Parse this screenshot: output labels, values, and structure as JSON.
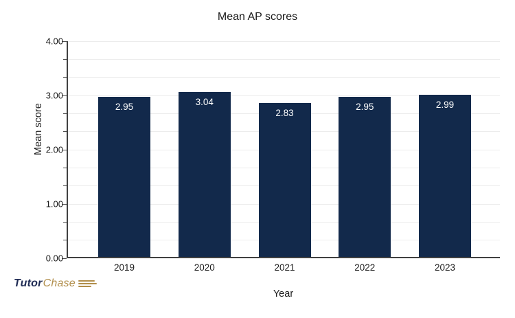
{
  "chart_data": {
    "type": "bar",
    "title": "Mean AP scores",
    "xlabel": "Year",
    "ylabel": "Mean score",
    "categories": [
      "2019",
      "2020",
      "2021",
      "2022",
      "2023"
    ],
    "values": [
      2.95,
      3.04,
      2.83,
      2.95,
      2.99
    ],
    "value_labels": [
      "2.95",
      "3.04",
      "2.83",
      "2.95",
      "2.99"
    ],
    "ylim": [
      0,
      4
    ],
    "y_major_ticks": [
      4,
      3,
      2,
      1,
      0
    ],
    "y_major_tick_labels": [
      "4.00",
      "3.00",
      "2.00",
      "1.00",
      "0.00"
    ],
    "y_minor_divisions_per_unit": 3,
    "grid": "horizontal lines at every minor tick",
    "legend": "none"
  },
  "branding": {
    "logo_part1": "Tutor",
    "logo_part2": "Chase"
  },
  "colors": {
    "bar": "#12294B",
    "bar_label": "#FFFFFF",
    "grid": "#ECECEC",
    "axis": "#404040",
    "tick": "#4D4D4D",
    "text": "#1A1A1A",
    "logo_navy": "#1F2B54",
    "logo_gold": "#B18E4B"
  }
}
